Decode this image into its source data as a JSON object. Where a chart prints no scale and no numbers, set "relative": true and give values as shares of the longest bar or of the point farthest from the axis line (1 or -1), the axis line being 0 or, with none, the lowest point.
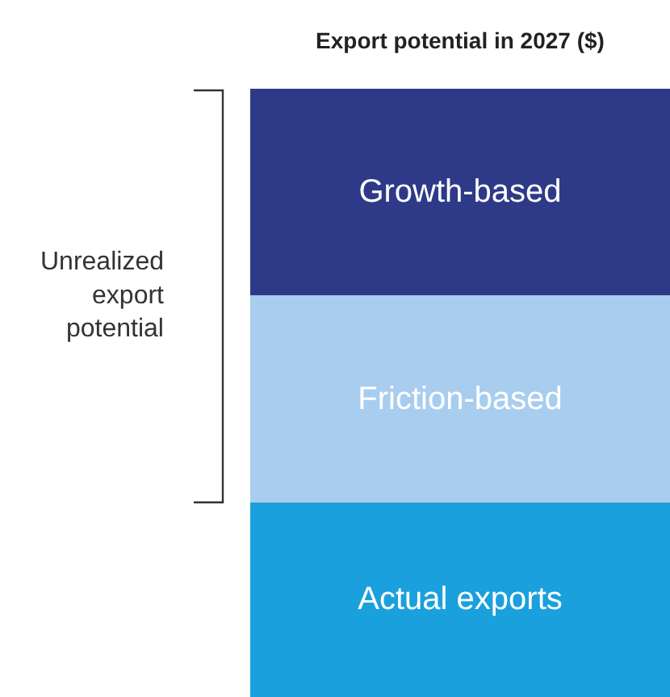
{
  "chart_data": {
    "type": "bar",
    "title": "Export potential in 2027 ($)",
    "categories": [
      null
    ],
    "stacked": true,
    "relative": true,
    "legend": false,
    "series": [
      {
        "name": "Actual exports",
        "color": "#1aa0dc",
        "values": [
          0.32
        ]
      },
      {
        "name": "Friction-based",
        "color": "#a8cdee",
        "values": [
          0.34
        ]
      },
      {
        "name": "Growth-based",
        "color": "#2e3a87",
        "values": [
          0.34
        ]
      }
    ],
    "annotations": [
      "Unrealized\nexport\npotential"
    ]
  }
}
